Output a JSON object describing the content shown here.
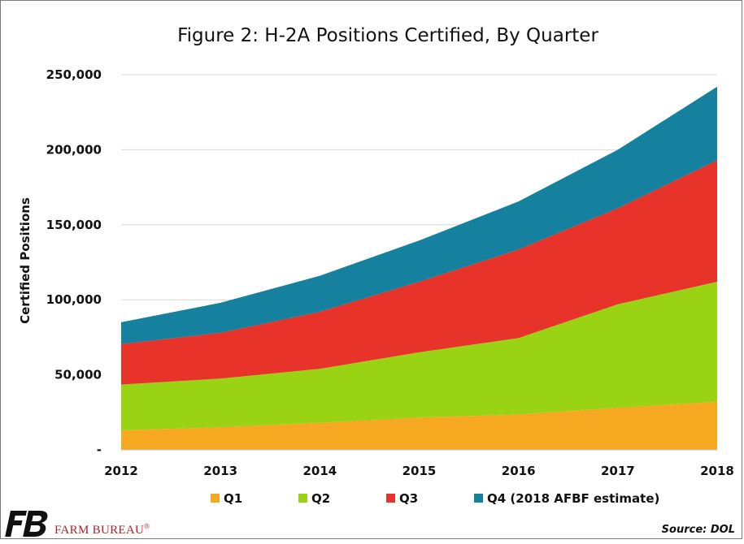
{
  "chart_data": {
    "type": "area",
    "stacked": true,
    "title": "Figure 2: H-2A Positions Certified, By Quarter",
    "xlabel": "",
    "ylabel": "Certified Positions",
    "categories": [
      "2012",
      "2013",
      "2014",
      "2015",
      "2016",
      "2017",
      "2018"
    ],
    "ylim": [
      0,
      250000
    ],
    "yticks": [
      0,
      50000,
      100000,
      150000,
      200000,
      250000
    ],
    "ytick_labels": [
      "-",
      "50,000",
      "100,000",
      "150,000",
      "200,000",
      "250,000"
    ],
    "grid": true,
    "legend_position": "bottom",
    "series": [
      {
        "name": "Q1",
        "color": "#f6a821",
        "values": [
          13000,
          15000,
          18000,
          21500,
          23500,
          28000,
          32000
        ]
      },
      {
        "name": "Q2",
        "color": "#9ad314",
        "values": [
          30500,
          32500,
          36000,
          43500,
          51000,
          69000,
          80000
        ]
      },
      {
        "name": "Q3",
        "color": "#e8332a",
        "values": [
          27000,
          30500,
          38000,
          47000,
          59000,
          64000,
          81000
        ]
      },
      {
        "name": "Q4 (2018 AFBF estimate)",
        "color": "#15819f",
        "values": [
          14500,
          20000,
          24000,
          27500,
          32000,
          39000,
          49000
        ]
      }
    ]
  },
  "footer": {
    "brand": "FARM BUREAU",
    "brand_mark": "®",
    "source": "Source: DOL"
  },
  "colors": {
    "brand_red": "#b3202a",
    "logo_black": "#111111",
    "grid": "#d9d9d9"
  }
}
